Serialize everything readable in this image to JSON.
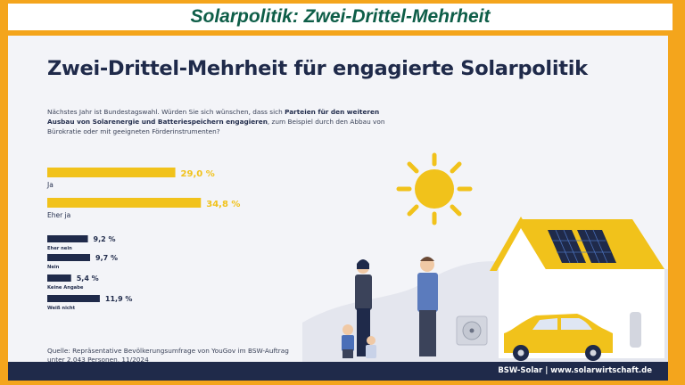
{
  "banner": {
    "title": "Solarpolitik: Zwei-Drittel-Mehrheit"
  },
  "infographic": {
    "headline": "Zwei-Drittel-Mehrheit für engagierte Solarpolitik",
    "question_pre": "Nächstes Jahr ist Bundestagswahl. Würden Sie sich wünschen, dass sich ",
    "question_bold": "Parteien für den weiteren Ausbau von Solarenergie und Batteriespeichern engagieren",
    "question_post": ", zum Beispiel durch den Abbau von Bürokratie oder mit geeigneten Förderinstrumenten?",
    "source_line1": "Quelle: Repräsentative Bevölkerungsumfrage von YouGov im BSW-Auftrag",
    "source_line2": "unter 2.043 Personen, 11/2024",
    "footer": "BSW-Solar | www.solarwirtschaft.de"
  },
  "chart_data": {
    "type": "bar",
    "orientation": "horizontal",
    "categories": [
      "Ja",
      "Eher ja",
      "Eher nein",
      "Nein",
      "Keine Angabe",
      "Weiß nicht"
    ],
    "values": [
      29.0,
      34.8,
      9.2,
      9.7,
      5.4,
      11.9
    ],
    "value_labels": [
      "29,0 %",
      "34,8 %",
      "9,2 %",
      "9,7 %",
      "5,4 %",
      "11,9 %"
    ],
    "unit": "%",
    "colors": [
      "#f1c21b",
      "#f1c21b",
      "#1f2a4a",
      "#1f2a4a",
      "#1f2a4a",
      "#1f2a4a"
    ],
    "grid": false,
    "legend": "none"
  }
}
